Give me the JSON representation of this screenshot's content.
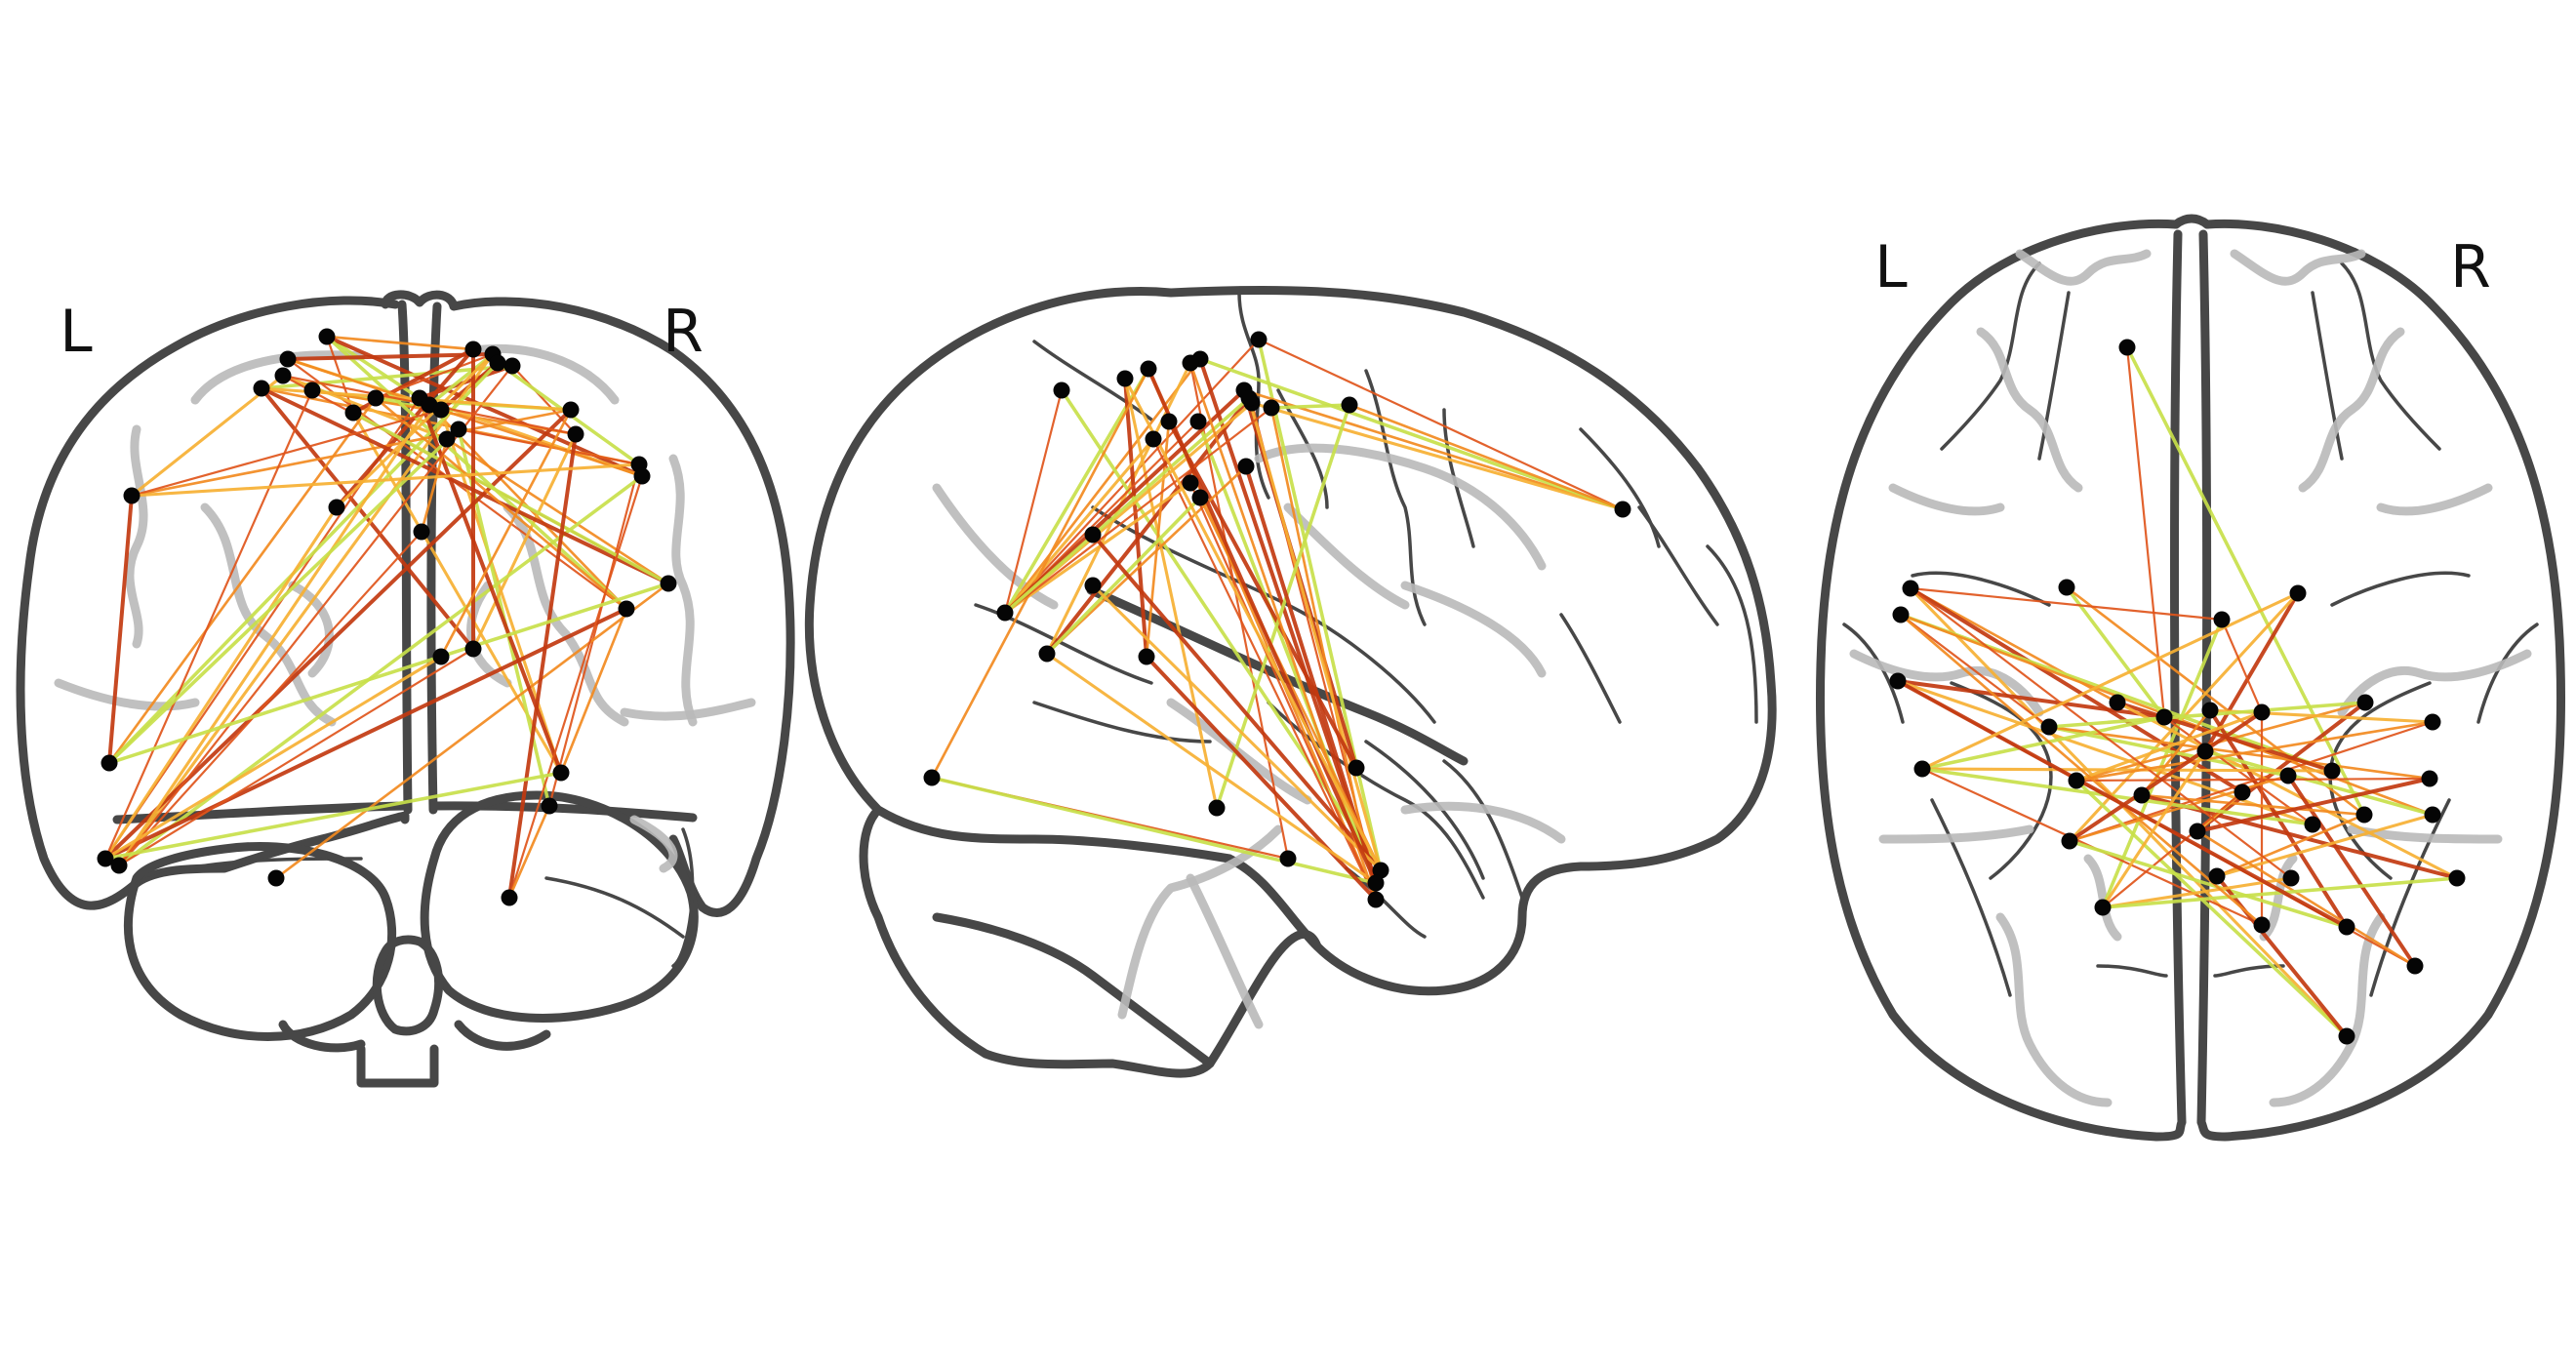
{
  "figure": {
    "type": "glass-brain connectome",
    "views": [
      {
        "id": "coronal",
        "labels": {
          "left": "L",
          "right": "R"
        }
      },
      {
        "id": "sagittal",
        "labels": null
      },
      {
        "id": "axial",
        "labels": {
          "left": "L",
          "right": "R"
        }
      }
    ],
    "edge_colors": [
      "#c8e04a",
      "#f6b033",
      "#f28a1f",
      "#e0551b",
      "#c23a10"
    ],
    "node_color": "#050505"
  }
}
